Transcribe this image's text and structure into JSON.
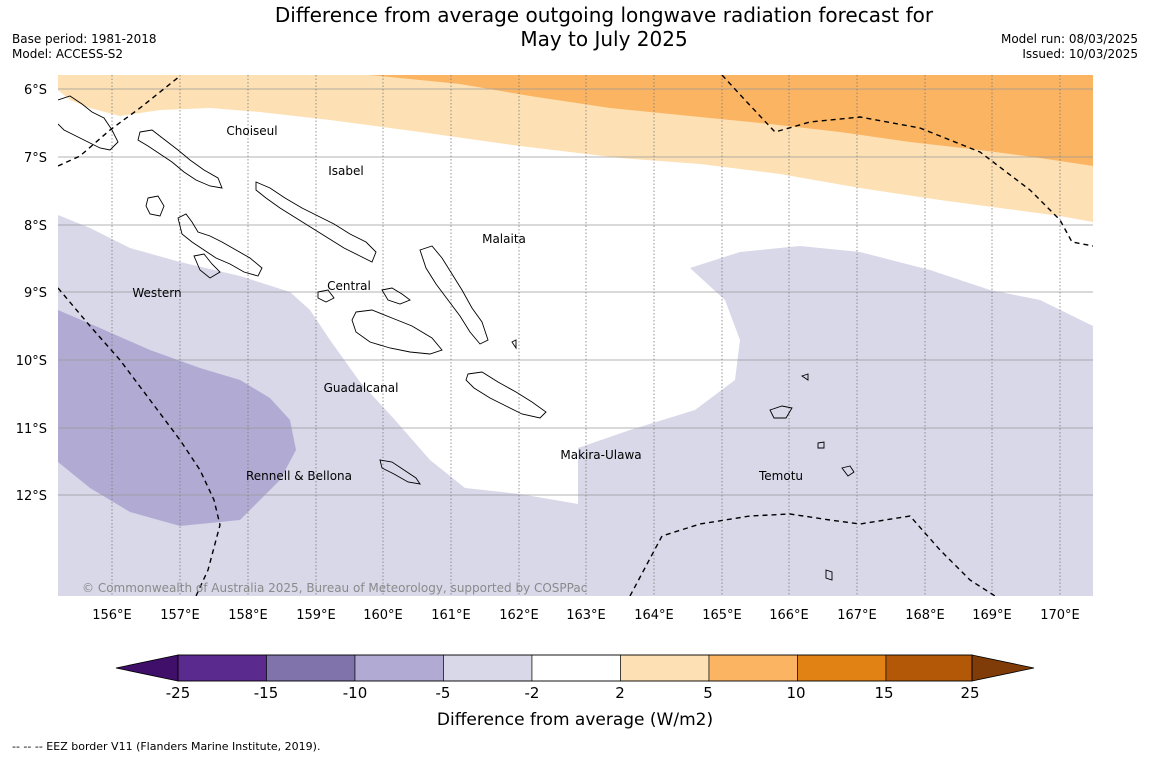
{
  "title": {
    "line1": "Difference from average outgoing longwave radiation forecast for",
    "line2": "May to July 2025"
  },
  "meta_left": {
    "base_period": "Base period: 1981-2018",
    "model": "Model: ACCESS-S2"
  },
  "meta_right": {
    "model_run": "Model run: 08/03/2025",
    "issued": "Issued: 10/03/2025"
  },
  "map": {
    "lat_labels": [
      "6°S",
      "7°S",
      "8°S",
      "9°S",
      "10°S",
      "11°S",
      "12°S"
    ],
    "lon_labels": [
      "156°E",
      "157°E",
      "158°E",
      "159°E",
      "160°E",
      "161°E",
      "162°E",
      "163°E",
      "164°E",
      "165°E",
      "166°E",
      "167°E",
      "168°E",
      "169°E",
      "170°E"
    ],
    "provinces": {
      "choiseul": "Choiseul",
      "isabel": "Isabel",
      "malaita": "Malaita",
      "western": "Western",
      "central": "Central",
      "guadalcanal": "Guadalcanal",
      "makira_ulawa": "Makira-Ulawa",
      "rennell_bellona": "Rennell & Bellona",
      "temotu": "Temotu"
    },
    "copyright": "© Commonwealth of Australia 2025, Bureau of Meteorology, supported by COSPPac",
    "colors": {
      "orange_light": "#fde0b4",
      "orange_mid": "#fbb461",
      "purple_light": "#d8d8e9",
      "purple_mid": "#b1abd3"
    }
  },
  "colorbar": {
    "label": "Difference from average (W/m2)",
    "ticks": [
      "-25",
      "-15",
      "-10",
      "-5",
      "-2",
      "2",
      "5",
      "10",
      "15",
      "25"
    ],
    "colors": [
      "#3f0f6a",
      "#5a2a8f",
      "#8073ac",
      "#b1abd3",
      "#d8d8e9",
      "#ffffff",
      "#fde0b4",
      "#fbb461",
      "#e08214",
      "#b35806",
      "#7f3b08"
    ]
  },
  "footnote": "--  --  -- EEZ border V11 (Flanders Marine Institute, 2019)."
}
